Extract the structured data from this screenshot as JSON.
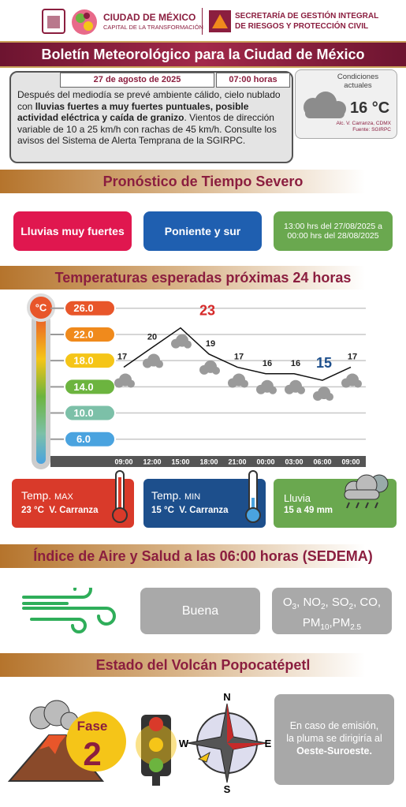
{
  "header": {
    "brand1": "CIUDAD DE MÉXICO",
    "brand2": "CAPITAL DE LA TRANSFORMACIÓN",
    "agency1": "SECRETARÍA DE GESTIÓN INTEGRAL",
    "agency2": "DE RIESGOS Y PROTECCIÓN CIVIL"
  },
  "title": "Boletín Meteorológico para la Ciudad de México",
  "bulletin": {
    "date": "27 de agosto de 2025",
    "time": "07:00 horas",
    "segments": [
      {
        "text": "Después del mediodía se prevé ambiente cálido, cielo nublado con ",
        "bold": false
      },
      {
        "text": "lluvias fuertes a muy fuertes puntuales, posible actividad eléctrica y caída de granizo",
        "bold": true
      },
      {
        "text": ". Vientos de dirección variable de 10 a 25 km/h con rachas de 45 km/h. Consulte los avisos del Sistema de Alerta Temprana de la SGIRPC.",
        "bold": false
      }
    ]
  },
  "conditions": {
    "label": "Condiciones actuales",
    "temp": "16 °C",
    "location": "Alc. V. Carranza, CDMX",
    "source": "Fuente: SGIRPC"
  },
  "severe": {
    "title": "Pronóstico de Tiempo Severo",
    "items": [
      "Lluvias muy fuertes",
      "Poniente y sur",
      "13:00 hrs del 27/08/2025 a 00:00 hrs del 28/08/2025"
    ]
  },
  "chart_data": {
    "type": "line",
    "title": "Temperaturas esperadas próximas 24 horas",
    "y_label": "°C",
    "categories": [
      "09:00",
      "12:00",
      "15:00",
      "18:00",
      "21:00",
      "00:00",
      "03:00",
      "06:00",
      "09:00"
    ],
    "values": [
      17,
      20,
      23,
      19,
      17,
      16,
      16,
      15,
      17
    ],
    "color": "#111111",
    "ylim": [
      3.2,
      28.5
    ],
    "yticks": [
      {
        "value": 26,
        "label": "26.0"
      },
      {
        "value": 22,
        "label": "22.0"
      },
      {
        "value": 18,
        "label": "18.0"
      },
      {
        "value": 14,
        "label": "14.0"
      },
      {
        "value": 10,
        "label": "10.0"
      },
      {
        "value": 6,
        "label": "6.0"
      }
    ],
    "tick_colors": [
      "#e8562a",
      "#f08a1c",
      "#f5c518",
      "#6cb43f",
      "#7cc0a8",
      "#4aa3df"
    ],
    "grid": true
  },
  "summary": {
    "max": {
      "label": "Temp.",
      "sub": "MAX",
      "value": "23 °C",
      "place": "V. Carranza"
    },
    "min": {
      "label": "Temp.",
      "sub": "MIN",
      "value": "15 °C",
      "place": "V. Carranza"
    },
    "rain": {
      "label": "Lluvia",
      "value": "15 a 49 mm"
    }
  },
  "air": {
    "title": "Índice de Aire y Salud a las 06:00 horas (SEDEMA)",
    "quality": "Buena",
    "pollutants": [
      {
        "text": "O"
      },
      {
        "sub": "3"
      },
      {
        "text": ", NO"
      },
      {
        "sub": "2"
      },
      {
        "text": ", SO"
      },
      {
        "sub": "2"
      },
      {
        "text": ", CO,"
      },
      {
        "text": "PM",
        "br": true
      },
      {
        "sub": "10"
      },
      {
        "text": ",PM"
      },
      {
        "sub": "2.5"
      }
    ]
  },
  "volcano": {
    "title": "Estado del Volcán Popocatépetl",
    "phase_label": "Fase",
    "phase": "2",
    "compass": {
      "n": "N",
      "e": "E",
      "s": "S",
      "w": "W"
    },
    "message": "En caso de emisión, la pluma se dirigiría al ",
    "direction": "Oeste-Suroeste."
  }
}
